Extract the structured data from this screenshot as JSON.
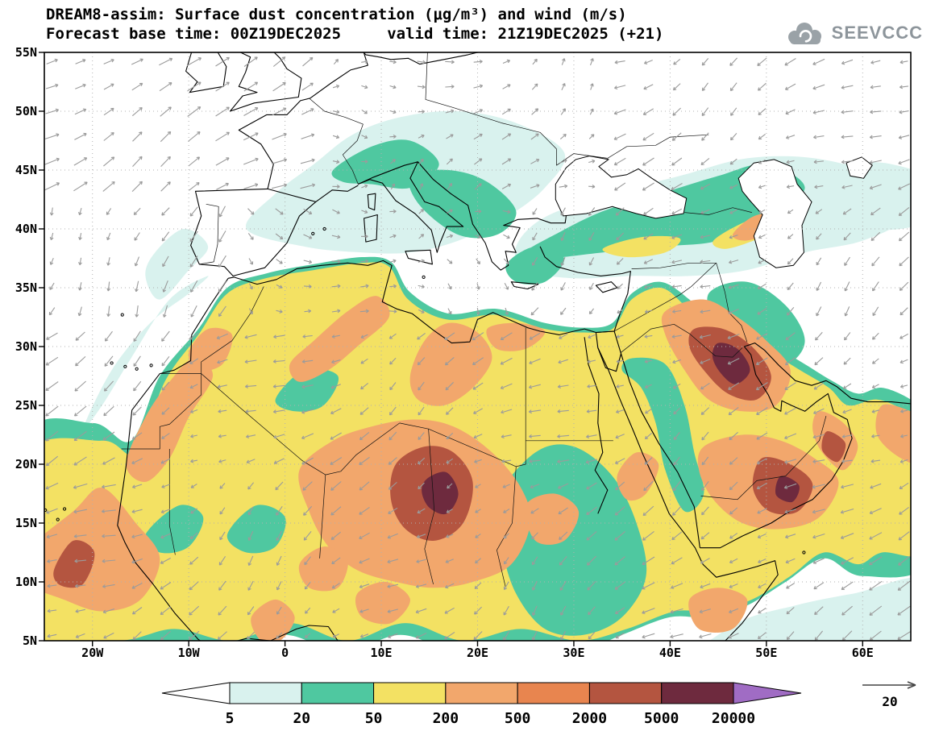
{
  "header": {
    "title_line1": "DREAM8-assim: Surface dust concentration (μg/m³) and wind (m/s)",
    "title_line2": "Forecast base time: 00Z19DEC2025     valid time: 21Z19DEC2025 (+21)",
    "logo_text": "SEEVCCC"
  },
  "chart_data": {
    "type": "heatmap",
    "title": "DREAM8-assim: Surface dust concentration (μg/m³) and wind (m/s)",
    "subtitle": "Forecast base time: 00Z19DEC2025  valid time: 21Z19DEC2025 (+21)",
    "model": "DREAM8-assim",
    "variable": "Surface dust concentration",
    "units": "μg/m³",
    "wind_units": "m/s",
    "forecast_base_time": "00Z19DEC2025",
    "valid_time": "21Z19DEC2025",
    "forecast_hour": "+21",
    "projection": "lat-lon",
    "lon_range": [
      -25,
      65
    ],
    "lat_range": [
      5,
      55
    ],
    "grid": true,
    "x_ticks": [
      {
        "lon": -20,
        "label": "20W"
      },
      {
        "lon": -10,
        "label": "10W"
      },
      {
        "lon": 0,
        "label": "0"
      },
      {
        "lon": 10,
        "label": "10E"
      },
      {
        "lon": 20,
        "label": "20E"
      },
      {
        "lon": 30,
        "label": "30E"
      },
      {
        "lon": 40,
        "label": "40E"
      },
      {
        "lon": 50,
        "label": "50E"
      },
      {
        "lon": 60,
        "label": "60E"
      }
    ],
    "y_ticks": [
      {
        "lat": 55,
        "label": "55N"
      },
      {
        "lat": 50,
        "label": "50N"
      },
      {
        "lat": 45,
        "label": "45N"
      },
      {
        "lat": 40,
        "label": "40N"
      },
      {
        "lat": 35,
        "label": "35N"
      },
      {
        "lat": 30,
        "label": "30N"
      },
      {
        "lat": 25,
        "label": "25N"
      },
      {
        "lat": 20,
        "label": "20N"
      },
      {
        "lat": 15,
        "label": "15N"
      },
      {
        "lat": 10,
        "label": "10N"
      },
      {
        "lat": 5,
        "label": "5N"
      }
    ],
    "colorbar": {
      "levels": [
        "5",
        "20",
        "50",
        "200",
        "500",
        "2000",
        "5000",
        "20000"
      ],
      "colors": [
        "#ffffff",
        "#d9f2ee",
        "#4fc8a0",
        "#f3e163",
        "#f2a76c",
        "#e8854f",
        "#b45540",
        "#6e2a3e",
        "#a06cc4"
      ]
    },
    "wind_reference": {
      "label": "20",
      "units": "m/s"
    },
    "map_colors": {
      "coastline": "#000000",
      "borders": "#111111",
      "grid": "#b0b0b0",
      "wind_arrows": "#9b9b9b",
      "sea_mask": "#ffffff"
    }
  }
}
